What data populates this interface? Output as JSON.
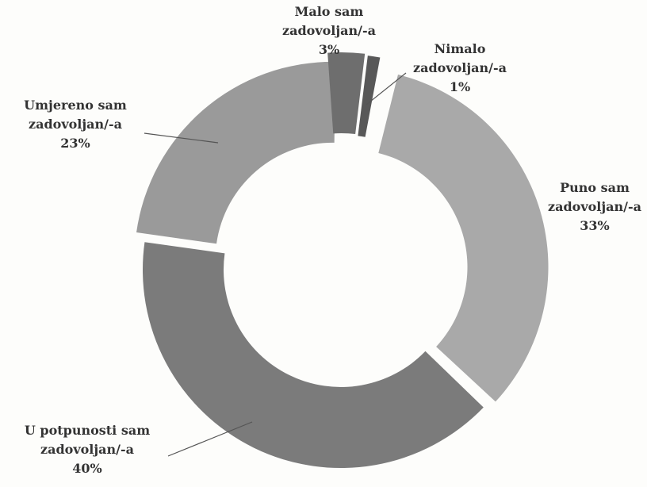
{
  "chart_data": {
    "type": "pie",
    "donut": true,
    "exploded": true,
    "slices": [
      {
        "lines": [
          "Puno sam",
          "zadovoljan/-a",
          "33%"
        ],
        "value": 33,
        "color": "#a9a9a9"
      },
      {
        "lines": [
          "U potpunosti sam",
          "zadovoljan/-a",
          "40%"
        ],
        "value": 40,
        "color": "#7b7b7b"
      },
      {
        "lines": [
          "Umjereno sam",
          "zadovoljan/-a",
          "23%"
        ],
        "value": 23,
        "color": "#9a9a9a"
      },
      {
        "lines": [
          "Malo sam",
          "zadovoljan/-a",
          "3%"
        ],
        "value": 3,
        "color": "#6e6e6e"
      },
      {
        "lines": [
          "Nimalo",
          "zadovoljan/-a",
          "1%"
        ],
        "value": 1,
        "color": "#585858"
      }
    ],
    "legend": "none"
  }
}
